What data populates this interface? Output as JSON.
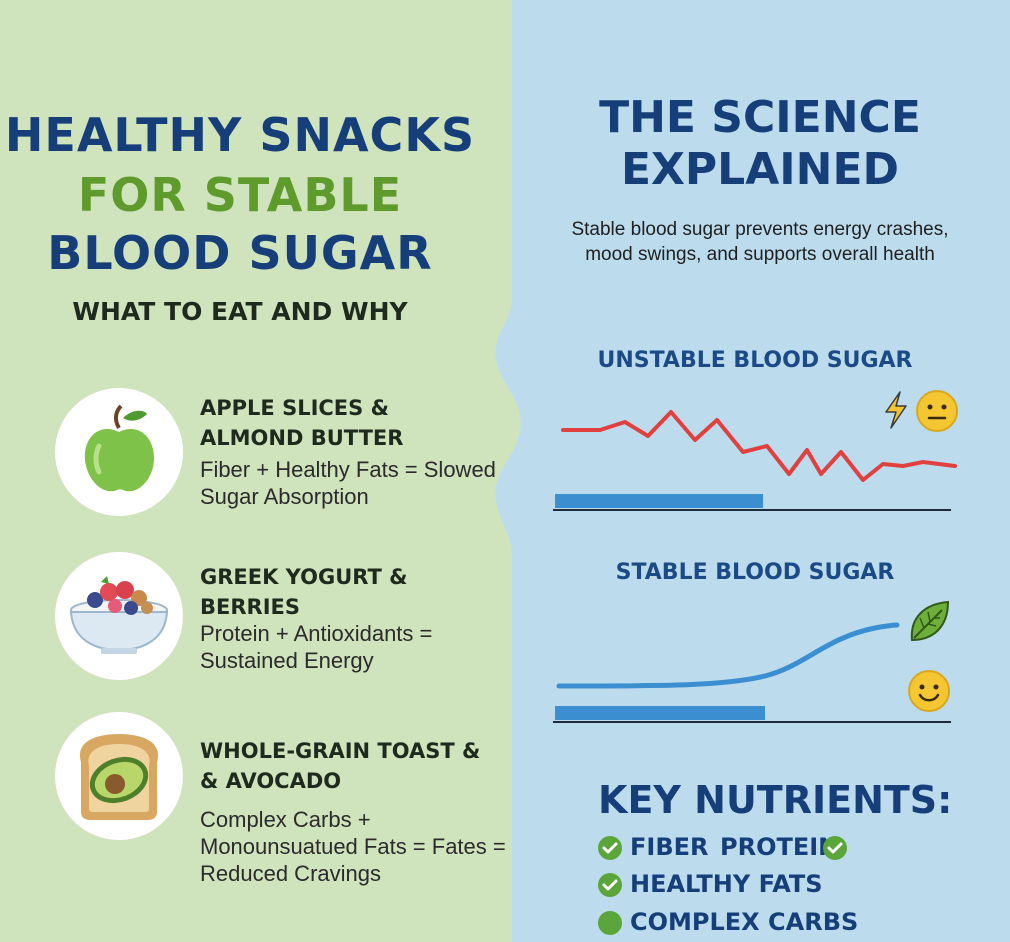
{
  "left": {
    "title_line1": "HEALTHY SNACKS",
    "title_line2": "FOR STABLE",
    "title_line3": "BLOOD SUGAR",
    "subtitle": "WHAT TO EAT AND WHY",
    "snacks": [
      {
        "name": "APPLE SLICES &\nALMOND BUTTER",
        "desc": "Fiber + Healthy Fats = Slowed\nSugar Absorption",
        "icon": "apple-icon"
      },
      {
        "name": "GREEK YOGURT &\nBERRIES",
        "desc": "Protein + Antioxidants =\nSustained Energy",
        "icon": "yogurt-bowl-icon"
      },
      {
        "name": "WHOLE-GRAIN TOAST &\n& AVOCADO",
        "desc": "Complex Carbs +\nMonounsuatued Fats = Fates =\nReduced Cravings",
        "icon": "avocado-toast-icon"
      }
    ]
  },
  "right": {
    "title_line1": "THE SCIENCE",
    "title_line2": "EXPLAINED",
    "description": "Stable blood sugar prevents energy crashes,\nmood swings, and supports overall health",
    "unstable_label": "UNSTABLE BLOOD SUGAR",
    "stable_label": "STABLE BLOOD SUGAR",
    "unstable_icons": [
      "lightning-icon",
      "neutral-face-icon"
    ],
    "stable_icons": [
      "leaf-icon",
      "smiley-face-icon"
    ],
    "key_nutrients_title": "KEY NUTRIENTS:",
    "nutrients": [
      "FIBER",
      "PROTEIN",
      "HEALTHY FATS",
      "COMPLEX CARBS"
    ]
  },
  "colors": {
    "left_bg": "#cfe3bd",
    "right_bg": "#bcdcee",
    "navy": "#163f7a",
    "green_title": "#5f9a2c",
    "unstable_line": "#e0403e",
    "stable_line": "#3b8fd0",
    "check_green": "#5aa63a"
  }
}
